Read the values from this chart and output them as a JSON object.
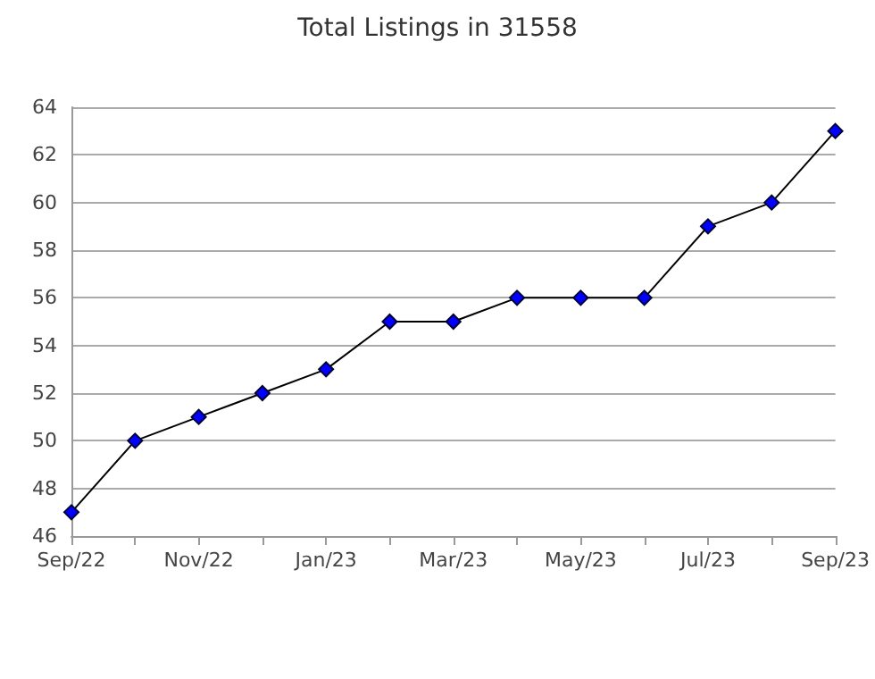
{
  "chart_data": {
    "type": "line",
    "title": "Total Listings in 31558",
    "categories": [
      "Sep/22",
      null,
      "Nov/22",
      null,
      "Jan/23",
      null,
      "Mar/23",
      null,
      "May/23",
      null,
      "Jul/23",
      null,
      "Sep/23"
    ],
    "series": [
      {
        "color": "#0000ff",
        "values": [
          47,
          50,
          51,
          52,
          53,
          55,
          55,
          56,
          56,
          56,
          59,
          60,
          63
        ]
      }
    ],
    "ylim": [
      46,
      64
    ],
    "yticks": [
      46,
      48,
      50,
      52,
      54,
      56,
      58,
      60,
      62,
      64
    ],
    "grid": "y",
    "marker": "diamond",
    "line_style": "solid"
  }
}
